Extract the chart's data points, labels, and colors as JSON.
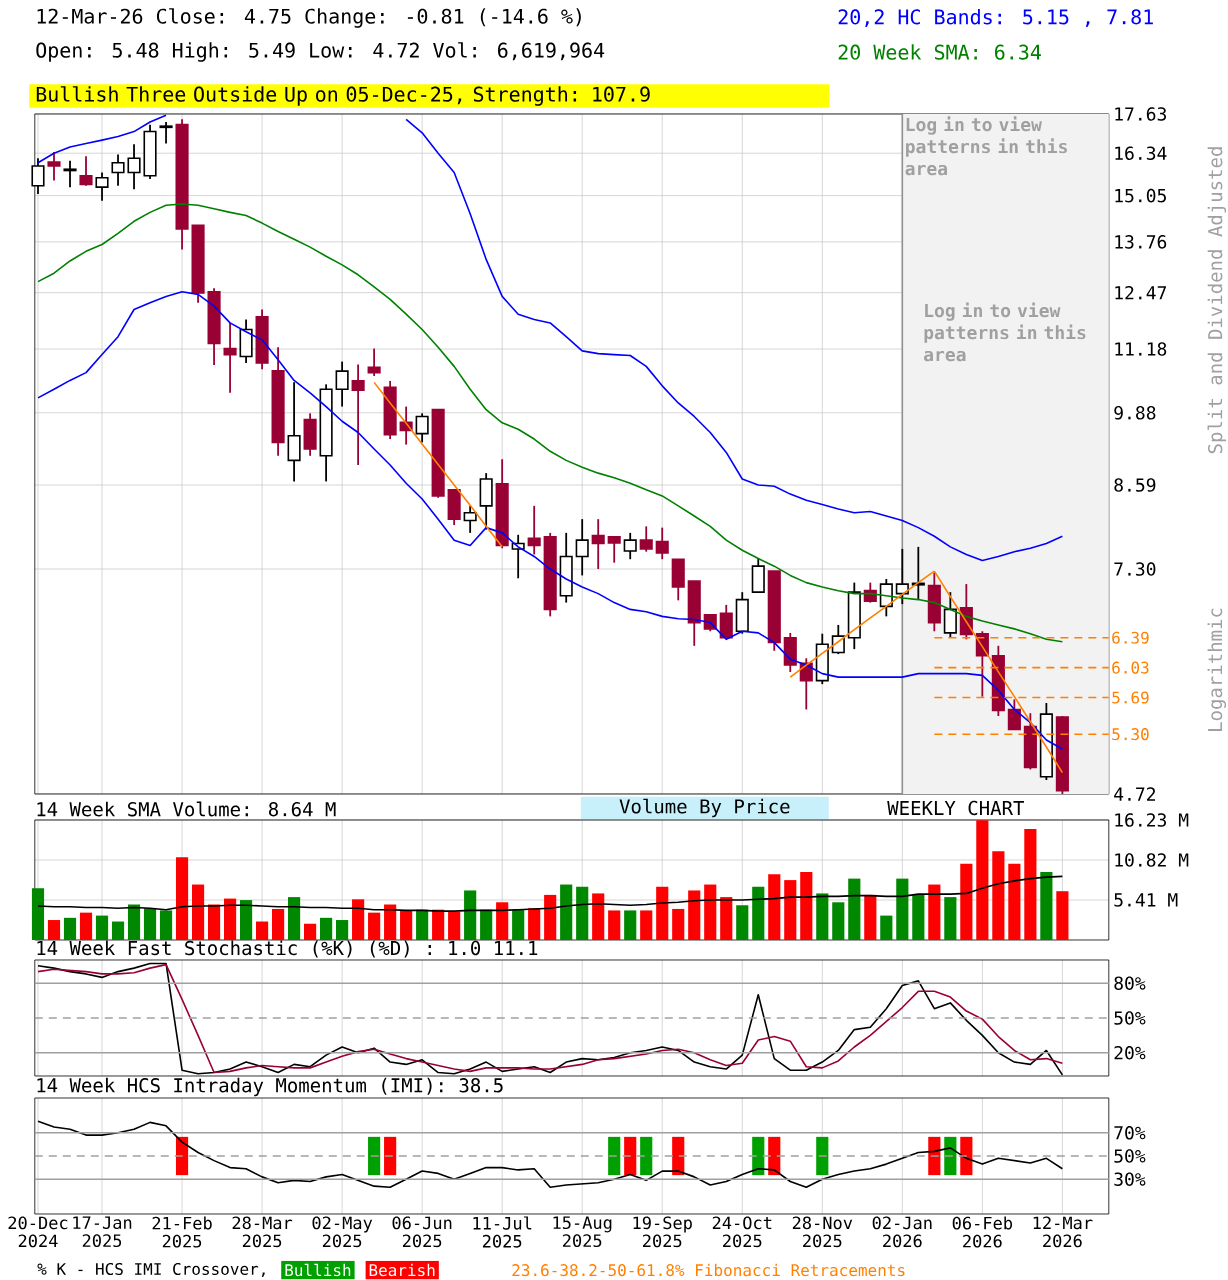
{
  "chart_data": [
    {
      "type": "candlestick",
      "title": "12-Mar-26 Close: 4.75 Change: -0.81 (-14.6 %)",
      "subtitle": "Open: 5.48 High: 5.49 Low: 4.72 Vol: 6,619,964",
      "ylabel": "Split and Dividend Adjusted",
      "annotations": [
        "20,2 HC Bands: 5.15 , 7.81",
        "20 Week SMA: 6.34",
        "Bullish Three Outside Up on 05-Dec-25, Strength: 107.9",
        "Log in to view patterns in this area",
        "Logarithmic",
        "Volume By Price",
        "WEEKLY CHART"
      ],
      "categories": [
        "20-Dec 2024",
        null,
        null,
        null,
        "17-Jan 2025",
        null,
        null,
        null,
        null,
        "21-Feb 2025",
        null,
        null,
        null,
        null,
        "28-Mar 2025",
        null,
        null,
        null,
        null,
        "02-May 2025",
        null,
        null,
        null,
        null,
        "06-Jun 2025",
        null,
        null,
        null,
        null,
        "11-Jul 2025",
        null,
        null,
        null,
        null,
        "15-Aug 2025",
        null,
        null,
        null,
        null,
        "19-Sep 2025",
        null,
        null,
        null,
        null,
        "24-Oct 2025",
        null,
        null,
        null,
        null,
        "28-Nov 2025",
        null,
        null,
        null,
        null,
        "02-Jan 2026",
        null,
        null,
        null,
        null,
        "06-Feb 2026",
        null,
        null,
        null,
        null,
        "12-Mar 2026"
      ],
      "ohlc": [
        [
          15.34,
          16.18,
          15.1,
          15.94
        ],
        [
          16.06,
          16.38,
          15.5,
          15.94
        ],
        [
          15.8,
          16.1,
          15.3,
          15.84
        ],
        [
          15.64,
          16.24,
          15.34,
          15.38
        ],
        [
          15.3,
          15.74,
          14.9,
          15.58
        ],
        [
          15.74,
          16.3,
          15.34,
          16.04
        ],
        [
          15.74,
          16.63,
          15.24,
          16.18
        ],
        [
          15.64,
          17.27,
          15.54,
          17.04
        ],
        [
          17.18,
          17.36,
          16.65,
          17.22
        ],
        [
          17.27,
          17.45,
          13.56,
          14.11
        ],
        [
          14.21,
          14.21,
          12.23,
          12.46
        ],
        [
          12.49,
          12.58,
          10.84,
          11.3
        ],
        [
          11.19,
          11.76,
          10.27,
          11.06
        ],
        [
          11.02,
          11.84,
          10.88,
          11.61
        ],
        [
          11.9,
          12.07,
          10.75,
          10.88
        ],
        [
          10.72,
          11.22,
          9.09,
          9.33
        ],
        [
          9.01,
          10.48,
          8.65,
          9.45
        ],
        [
          9.75,
          9.87,
          9.09,
          9.21
        ],
        [
          9.09,
          10.44,
          8.65,
          10.34
        ],
        [
          10.34,
          10.91,
          10.0,
          10.71
        ],
        [
          10.51,
          10.85,
          8.93,
          10.32
        ],
        [
          10.79,
          11.19,
          10.61,
          10.68
        ],
        [
          10.38,
          10.51,
          9.39,
          9.47
        ],
        [
          9.7,
          10.0,
          9.29,
          9.55
        ],
        [
          9.49,
          9.87,
          9.33,
          9.81
        ],
        [
          9.94,
          9.94,
          8.38,
          8.41
        ],
        [
          8.51,
          8.51,
          7.95,
          8.04
        ],
        [
          8.02,
          8.25,
          7.83,
          8.14
        ],
        [
          8.25,
          8.79,
          7.88,
          8.69
        ],
        [
          8.61,
          9.03,
          7.6,
          7.64
        ],
        [
          7.59,
          7.8,
          7.17,
          7.67
        ],
        [
          7.75,
          8.25,
          7.51,
          7.64
        ],
        [
          7.77,
          7.83,
          6.66,
          6.75
        ],
        [
          6.93,
          7.83,
          6.84,
          7.48
        ],
        [
          7.48,
          8.04,
          7.21,
          7.72
        ],
        [
          7.79,
          8.04,
          7.3,
          7.67
        ],
        [
          7.77,
          7.77,
          7.39,
          7.68
        ],
        [
          7.56,
          7.83,
          7.44,
          7.72
        ],
        [
          7.72,
          7.93,
          7.55,
          7.59
        ],
        [
          7.7,
          7.91,
          7.44,
          7.53
        ],
        [
          7.44,
          7.44,
          6.87,
          7.05
        ],
        [
          7.13,
          7.13,
          6.29,
          6.58
        ],
        [
          6.68,
          6.68,
          6.47,
          6.5
        ],
        [
          6.7,
          6.81,
          6.37,
          6.39
        ],
        [
          6.47,
          6.98,
          6.44,
          6.88
        ],
        [
          6.98,
          7.45,
          6.98,
          7.34
        ],
        [
          7.27,
          7.27,
          6.23,
          6.33
        ],
        [
          6.39,
          6.45,
          5.98,
          6.06
        ],
        [
          6.08,
          6.14,
          5.56,
          5.88
        ],
        [
          5.88,
          6.44,
          5.84,
          6.31
        ],
        [
          6.21,
          6.55,
          6.19,
          6.41
        ],
        [
          6.39,
          7.11,
          6.25,
          6.98
        ],
        [
          7.0,
          7.11,
          6.84,
          6.86
        ],
        [
          6.79,
          7.16,
          6.66,
          7.09
        ],
        [
          6.96,
          7.59,
          6.82,
          7.09
        ],
        [
          7.08,
          7.62,
          6.88,
          7.1
        ],
        [
          7.07,
          7.25,
          6.47,
          6.58
        ],
        [
          6.45,
          6.98,
          6.39,
          6.75
        ],
        [
          6.77,
          7.09,
          6.37,
          6.43
        ],
        [
          6.44,
          6.47,
          5.7,
          6.17
        ],
        [
          6.17,
          6.29,
          5.49,
          5.55
        ],
        [
          5.56,
          5.67,
          5.35,
          5.35
        ],
        [
          5.38,
          5.52,
          4.95,
          4.97
        ],
        [
          4.88,
          5.63,
          4.85,
          5.51
        ],
        [
          5.48,
          5.49,
          4.72,
          4.75
        ]
      ],
      "colors": [
        "#ffffff",
        "#990033",
        "#ffffff",
        "#990033",
        "#ffffff",
        "#ffffff",
        "#ffffff",
        "#ffffff",
        "#ffffff",
        "#990033",
        "#990033",
        "#990033",
        "#990033",
        "#ffffff",
        "#990033",
        "#990033",
        "#ffffff",
        "#990033",
        "#ffffff",
        "#ffffff",
        "#990033",
        "#990033",
        "#990033",
        "#990033",
        "#ffffff",
        "#990033",
        "#990033",
        "#ffffff",
        "#ffffff",
        "#990033",
        "#ffffff",
        "#990033",
        "#990033",
        "#ffffff",
        "#ffffff",
        "#990033",
        "#990033",
        "#ffffff",
        "#990033",
        "#990033",
        "#990033",
        "#990033",
        "#990033",
        "#990033",
        "#ffffff",
        "#ffffff",
        "#990033",
        "#990033",
        "#990033",
        "#ffffff",
        "#ffffff",
        "#ffffff",
        "#990033",
        "#ffffff",
        "#ffffff",
        "#ffffff",
        "#990033",
        "#ffffff",
        "#990033",
        "#990033",
        "#990033",
        "#990033",
        "#990033",
        "#ffffff",
        "#990033"
      ],
      "series": [
        {
          "type": "line",
          "color": "#0000ff",
          "values": [
            16.04,
            16.34,
            16.54,
            16.65,
            16.76,
            16.88,
            17.04,
            17.36,
            17.59,
            null,
            null,
            null,
            null,
            null,
            null,
            null,
            null,
            null,
            null,
            null,
            null,
            null,
            null,
            17.45,
            17.0,
            16.34,
            15.74,
            14.53,
            13.3,
            12.38,
            11.96,
            11.84,
            11.76,
            11.45,
            11.14,
            11.08,
            11.06,
            11.04,
            10.81,
            10.41,
            10.07,
            9.81,
            9.51,
            9.15,
            8.69,
            8.59,
            8.57,
            8.44,
            8.34,
            8.27,
            8.2,
            8.14,
            8.16,
            8.09,
            8.02,
            7.91,
            7.78,
            7.62,
            7.51,
            7.42,
            7.48,
            7.55,
            7.6,
            7.67,
            7.78
          ]
        },
        {
          "type": "line",
          "color": "#0000ff",
          "values": [
            10.17,
            10.34,
            10.52,
            10.68,
            11.06,
            11.45,
            12.07,
            12.23,
            12.38,
            12.49,
            12.43,
            12.15,
            11.76,
            11.56,
            11.38,
            10.95,
            10.52,
            10.27,
            10.0,
            9.72,
            9.51,
            9.21,
            8.93,
            8.62,
            8.36,
            8.04,
            7.72,
            7.64,
            7.91,
            7.83,
            7.62,
            7.48,
            7.3,
            7.16,
            7.05,
            6.96,
            6.84,
            6.75,
            6.72,
            6.66,
            6.63,
            6.62,
            6.58,
            6.37,
            6.47,
            6.45,
            6.33,
            6.13,
            6.06,
            5.96,
            5.92,
            5.92,
            5.92,
            5.92,
            5.92,
            5.96,
            5.96,
            5.96,
            5.96,
            5.94,
            5.77,
            5.56,
            5.42,
            5.24,
            5.15
          ]
        },
        {
          "type": "line",
          "color": "#008000",
          "values": [
            12.74,
            12.95,
            13.26,
            13.51,
            13.69,
            13.99,
            14.32,
            14.57,
            14.77,
            14.81,
            14.77,
            14.67,
            14.57,
            14.48,
            14.27,
            14.04,
            13.83,
            13.62,
            13.38,
            13.16,
            12.91,
            12.61,
            12.31,
            11.96,
            11.61,
            11.22,
            10.81,
            10.34,
            9.94,
            9.69,
            9.57,
            9.39,
            9.17,
            9.01,
            8.89,
            8.79,
            8.71,
            8.62,
            8.51,
            8.41,
            8.25,
            8.09,
            7.93,
            7.72,
            7.57,
            7.45,
            7.34,
            7.21,
            7.11,
            7.05,
            7.0,
            6.96,
            6.96,
            6.93,
            6.9,
            6.88,
            6.84,
            6.75,
            6.66,
            6.6,
            6.55,
            6.5,
            6.44,
            6.37,
            6.34
          ]
        },
        {
          "type": "line",
          "color": "#ff8000",
          "values": [
            null,
            null,
            null,
            null,
            null,
            null,
            null,
            null,
            null,
            null,
            null,
            null,
            null,
            null,
            null,
            null,
            null,
            null,
            null,
            null,
            null,
            10.48,
            10.07,
            9.68,
            9.3,
            8.94,
            8.59,
            8.26,
            7.93,
            7.62,
            null,
            null,
            null,
            null,
            null,
            null,
            null,
            null,
            null,
            null,
            null,
            null,
            null,
            null,
            null,
            null,
            null,
            null,
            null,
            null,
            null,
            null,
            null,
            null,
            null,
            null,
            null,
            null,
            null,
            null,
            null,
            null,
            null,
            null,
            null
          ]
        },
        {
          "type": "line",
          "color": "#ff8000",
          "values": [
            null,
            null,
            null,
            null,
            null,
            null,
            null,
            null,
            null,
            null,
            null,
            null,
            null,
            null,
            null,
            null,
            null,
            null,
            null,
            null,
            null,
            null,
            null,
            null,
            null,
            null,
            null,
            null,
            null,
            null,
            null,
            null,
            null,
            null,
            null,
            null,
            null,
            null,
            null,
            null,
            null,
            null,
            null,
            null,
            null,
            null,
            null,
            5.92,
            6.06,
            6.2,
            6.34,
            6.49,
            6.64,
            6.79,
            6.95,
            7.11,
            7.27,
            null,
            null,
            null,
            null,
            null,
            null,
            null,
            null
          ]
        },
        {
          "type": "line",
          "color": "#ff8000",
          "values": [
            null,
            null,
            null,
            null,
            null,
            null,
            null,
            null,
            null,
            null,
            null,
            null,
            null,
            null,
            null,
            null,
            null,
            null,
            null,
            null,
            null,
            null,
            null,
            null,
            null,
            null,
            null,
            null,
            null,
            null,
            null,
            null,
            null,
            null,
            null,
            null,
            null,
            null,
            null,
            null,
            null,
            null,
            null,
            null,
            null,
            null,
            null,
            null,
            null,
            null,
            null,
            null,
            null,
            null,
            null,
            null,
            7.27,
            6.92,
            6.59,
            6.28,
            5.98,
            5.7,
            5.43,
            5.17,
            4.92
          ]
        }
      ],
      "ref_lines": [
        {
          "axis": "y",
          "value": 6.39,
          "label": "6.39",
          "color": "#ff8000",
          "line_style": "dashed"
        },
        {
          "axis": "y",
          "value": 6.03,
          "label": "6.03",
          "color": "#ff8000",
          "line_style": "dashed"
        },
        {
          "axis": "y",
          "value": 5.69,
          "label": "5.69",
          "color": "#ff8000",
          "line_style": "dashed"
        },
        {
          "axis": "y",
          "value": 5.3,
          "label": "5.30",
          "color": "#ff8000",
          "line_style": "dashed"
        }
      ],
      "bands": [
        {
          "axis": "x",
          "from": "02-Jan 2026",
          "to": "12-Mar 2026",
          "label": "Log in to view patterns in this area",
          "color": "#f2f2f2"
        }
      ],
      "log": "y",
      "ylim": [
        4.72,
        17.63
      ],
      "yticks": [
        17.63,
        16.34,
        15.05,
        13.76,
        12.47,
        11.18,
        9.88,
        8.59,
        {
          "value": 7.3,
          "label": "7.30"
        },
        4.72
      ],
      "grid": true,
      "tick_labels": "y"
    },
    {
      "type": "bar",
      "title": "14 Week SMA Volume: 8.64 M",
      "categories": [
        "20-Dec 2024",
        null,
        null,
        null,
        "17-Jan 2025",
        null,
        null,
        null,
        null,
        "21-Feb 2025",
        null,
        null,
        null,
        null,
        "28-Mar 2025",
        null,
        null,
        null,
        null,
        "02-May 2025",
        null,
        null,
        null,
        null,
        "06-Jun 2025",
        null,
        null,
        null,
        null,
        "11-Jul 2025",
        null,
        null,
        null,
        null,
        "15-Aug 2025",
        null,
        null,
        null,
        null,
        "19-Sep 2025",
        null,
        null,
        null,
        null,
        "24-Oct 2025",
        null,
        null,
        null,
        null,
        "28-Nov 2025",
        null,
        null,
        null,
        null,
        "02-Jan 2026",
        null,
        null,
        null,
        null,
        "06-Feb 2026",
        null,
        null,
        null,
        null,
        "12-Mar 2026"
      ],
      "series": [
        {
          "type": "bar",
          "values": [
            7.0,
            2.7,
            3.0,
            3.7,
            3.3,
            2.5,
            4.8,
            4.3,
            4.0,
            11.2,
            7.5,
            4.8,
            5.6,
            5.4,
            2.5,
            4.2,
            5.8,
            2.2,
            3.0,
            2.7,
            5.5,
            3.7,
            4.8,
            4.0,
            4.1,
            4.1,
            3.8,
            6.7,
            4.1,
            5.1,
            4.1,
            4.3,
            6.1,
            7.5,
            7.2,
            6.3,
            4.0,
            4.0,
            4.0,
            7.2,
            4.2,
            6.7,
            7.5,
            5.8,
            4.7,
            7.2,
            8.9,
            8.1,
            9.2,
            6.3,
            5.1,
            8.3,
            6.1,
            3.3,
            8.3,
            6.1,
            7.5,
            5.8,
            10.3,
            16.2,
            12.0,
            10.3,
            15.0,
            9.2,
            6.6
          ],
          "colors": [
            "#008800",
            "#ff0000",
            "#008800",
            "#ff0000",
            "#008800",
            "#008800",
            "#008800",
            "#008800",
            "#008800",
            "#ff0000",
            "#ff0000",
            "#ff0000",
            "#ff0000",
            "#008800",
            "#ff0000",
            "#ff0000",
            "#008800",
            "#ff0000",
            "#008800",
            "#008800",
            "#ff0000",
            "#ff0000",
            "#ff0000",
            "#ff0000",
            "#008800",
            "#ff0000",
            "#ff0000",
            "#008800",
            "#008800",
            "#ff0000",
            "#008800",
            "#ff0000",
            "#ff0000",
            "#008800",
            "#008800",
            "#ff0000",
            "#ff0000",
            "#008800",
            "#ff0000",
            "#ff0000",
            "#ff0000",
            "#ff0000",
            "#ff0000",
            "#ff0000",
            "#008800",
            "#008800",
            "#ff0000",
            "#ff0000",
            "#ff0000",
            "#008800",
            "#008800",
            "#008800",
            "#ff0000",
            "#008800",
            "#008800",
            "#008800",
            "#ff0000",
            "#008800",
            "#ff0000",
            "#ff0000",
            "#ff0000",
            "#ff0000",
            "#ff0000",
            "#008800",
            "#ff0000"
          ]
        },
        {
          "type": "line",
          "color": "#000000",
          "values": [
            4.6,
            4.5,
            4.5,
            4.4,
            4.4,
            4.3,
            4.4,
            4.3,
            4.1,
            4.5,
            4.6,
            4.6,
            4.7,
            4.7,
            4.6,
            4.5,
            4.5,
            4.4,
            4.4,
            4.3,
            4.3,
            4.1,
            4.1,
            4.0,
            4.0,
            3.9,
            3.9,
            4.0,
            4.0,
            4.0,
            4.1,
            4.2,
            4.3,
            4.6,
            4.8,
            4.9,
            4.8,
            4.7,
            4.8,
            5.0,
            5.1,
            5.3,
            5.4,
            5.4,
            5.4,
            5.5,
            5.6,
            5.8,
            5.8,
            5.9,
            5.9,
            6.0,
            6.0,
            5.9,
            5.9,
            6.2,
            6.2,
            6.2,
            6.3,
            7.0,
            7.6,
            8.0,
            8.3,
            8.5,
            8.6
          ]
        }
      ],
      "ylim": [
        0,
        16.23
      ],
      "yticks": [
        {
          "value": 16.23,
          "label": "16.23 M"
        },
        {
          "value": 10.82,
          "label": "10.82 M"
        },
        {
          "value": 5.41,
          "label": "5.41 M"
        }
      ],
      "grid": true,
      "tick_labels": "y"
    },
    {
      "type": "line",
      "title": "14 Week Fast Stochastic (%K) (%D) : 1.0 11.1",
      "categories": [
        "20-Dec 2024",
        null,
        null,
        null,
        "17-Jan 2025",
        null,
        null,
        null,
        null,
        "21-Feb 2025",
        null,
        null,
        null,
        null,
        "28-Mar 2025",
        null,
        null,
        null,
        null,
        "02-May 2025",
        null,
        null,
        null,
        null,
        "06-Jun 2025",
        null,
        null,
        null,
        null,
        "11-Jul 2025",
        null,
        null,
        null,
        null,
        "15-Aug 2025",
        null,
        null,
        null,
        null,
        "19-Sep 2025",
        null,
        null,
        null,
        null,
        "24-Oct 2025",
        null,
        null,
        null,
        null,
        "28-Nov 2025",
        null,
        null,
        null,
        null,
        "02-Jan 2026",
        null,
        null,
        null,
        null,
        "06-Feb 2026",
        null,
        null,
        null,
        null,
        "12-Mar 2026"
      ],
      "series": [
        {
          "color": "#000000",
          "values": [
            95,
            93,
            90,
            88,
            85,
            90,
            93,
            97,
            97,
            5,
            2,
            3,
            6,
            12,
            8,
            3,
            10,
            8,
            18,
            25,
            20,
            24,
            12,
            10,
            14,
            3,
            2,
            6,
            12,
            4,
            6,
            8,
            3,
            12,
            15,
            14,
            16,
            20,
            22,
            25,
            22,
            12,
            8,
            6,
            18,
            70,
            15,
            5,
            5,
            12,
            22,
            40,
            42,
            58,
            78,
            82,
            58,
            63,
            48,
            35,
            20,
            12,
            10,
            22,
            1
          ]
        },
        {
          "color": "#990033",
          "values": [
            90,
            92,
            91,
            90,
            88,
            88,
            89,
            93,
            96,
            66,
            35,
            3,
            4,
            7,
            9,
            8,
            7,
            7,
            12,
            17,
            21,
            23,
            19,
            15,
            12,
            9,
            6,
            4,
            7,
            7,
            7,
            6,
            6,
            8,
            10,
            14,
            15,
            17,
            19,
            22,
            23,
            20,
            14,
            9,
            11,
            31,
            34,
            30,
            8,
            7,
            13,
            25,
            35,
            47,
            59,
            73,
            73,
            68,
            56,
            49,
            34,
            22,
            14,
            15,
            11
          ]
        }
      ],
      "ref_lines": [
        {
          "axis": "y",
          "value": 80,
          "color": "#a0a0a0"
        },
        {
          "axis": "y",
          "value": 50,
          "color": "#a0a0a0",
          "line_style": "dashed"
        },
        {
          "axis": "y",
          "value": 20,
          "color": "#a0a0a0"
        }
      ],
      "ylim": [
        0,
        100
      ],
      "yticks": [
        {
          "value": 80,
          "label": "80%"
        },
        {
          "value": 50,
          "label": "50%"
        },
        {
          "value": 20,
          "label": "20%"
        }
      ],
      "grid": "x",
      "tick_labels": "y"
    },
    {
      "type": "line",
      "title": "14 Week HCS Intraday Momentum (IMI): 38.5",
      "legend": "bottom",
      "legend_title": "% K - HCS IMI Crossover,",
      "annotations": [
        "23.6-38.2-50-61.8% Fibonacci Retracements"
      ],
      "categories": [
        "20-Dec 2024",
        null,
        null,
        null,
        "17-Jan 2025",
        null,
        null,
        null,
        null,
        "21-Feb 2025",
        null,
        null,
        null,
        null,
        "28-Mar 2025",
        null,
        null,
        null,
        null,
        "02-May 2025",
        null,
        null,
        null,
        null,
        "06-Jun 2025",
        null,
        null,
        null,
        null,
        "11-Jul 2025",
        null,
        null,
        null,
        null,
        "15-Aug 2025",
        null,
        null,
        null,
        null,
        "19-Sep 2025",
        null,
        null,
        null,
        null,
        "24-Oct 2025",
        null,
        null,
        null,
        null,
        "28-Nov 2025",
        null,
        null,
        null,
        null,
        "02-Jan 2026",
        null,
        null,
        null,
        null,
        "06-Feb 2026",
        null,
        null,
        null,
        null,
        "12-Mar 2026"
      ],
      "series": [
        {
          "color": "#000000",
          "values": [
            80,
            75,
            73,
            68,
            68,
            70,
            73,
            79,
            76,
            62,
            53,
            46,
            40,
            39,
            32,
            27,
            29,
            28,
            32,
            34,
            29,
            24,
            23,
            30,
            37,
            35,
            30,
            35,
            40,
            40,
            38,
            39,
            23,
            25,
            26,
            27,
            30,
            34,
            29,
            37,
            37,
            32,
            25,
            28,
            34,
            39,
            38,
            28,
            23,
            30,
            34,
            37,
            39,
            43,
            48,
            53,
            54,
            57,
            48,
            43,
            48,
            46,
            44,
            48,
            39
          ]
        },
        {
          "type": "bar",
          "name": "Bullish",
          "color": "#00a000",
          "base": [
            null,
            null,
            null,
            null,
            null,
            null,
            null,
            null,
            null,
            null,
            null,
            null,
            null,
            null,
            null,
            null,
            null,
            null,
            null,
            null,
            null,
            33.5,
            null,
            null,
            null,
            null,
            null,
            null,
            null,
            null,
            null,
            null,
            null,
            null,
            null,
            null,
            33.5,
            null,
            33.5,
            null,
            null,
            null,
            null,
            null,
            null,
            33.5,
            null,
            null,
            null,
            33.5,
            null,
            null,
            null,
            null,
            null,
            null,
            null,
            33.5,
            null,
            null,
            null,
            null,
            null,
            null,
            null
          ],
          "values": [
            null,
            null,
            null,
            null,
            null,
            null,
            null,
            null,
            null,
            null,
            null,
            null,
            null,
            null,
            null,
            null,
            null,
            null,
            null,
            null,
            null,
            33,
            null,
            null,
            null,
            null,
            null,
            null,
            null,
            null,
            null,
            null,
            null,
            null,
            null,
            null,
            33,
            null,
            33,
            null,
            null,
            null,
            null,
            null,
            null,
            33,
            null,
            null,
            null,
            33,
            null,
            null,
            null,
            null,
            null,
            null,
            null,
            33,
            null,
            null,
            null,
            null,
            null,
            null,
            null
          ]
        },
        {
          "type": "bar",
          "name": "Bearish",
          "color": "#ff0000",
          "base": [
            null,
            null,
            null,
            null,
            null,
            null,
            null,
            null,
            null,
            33.5,
            null,
            null,
            null,
            null,
            null,
            null,
            null,
            null,
            null,
            null,
            null,
            null,
            33.5,
            null,
            null,
            null,
            null,
            null,
            null,
            null,
            null,
            null,
            null,
            null,
            null,
            null,
            null,
            33.5,
            null,
            null,
            33.5,
            null,
            null,
            null,
            null,
            null,
            33.5,
            null,
            null,
            null,
            null,
            null,
            null,
            null,
            null,
            null,
            33.5,
            null,
            33.5,
            null,
            null,
            null,
            null,
            null,
            null
          ],
          "values": [
            null,
            null,
            null,
            null,
            null,
            null,
            null,
            null,
            null,
            33,
            null,
            null,
            null,
            null,
            null,
            null,
            null,
            null,
            null,
            null,
            null,
            null,
            33,
            null,
            null,
            null,
            null,
            null,
            null,
            null,
            null,
            null,
            null,
            null,
            null,
            null,
            null,
            33,
            null,
            null,
            33,
            null,
            null,
            null,
            null,
            null,
            33,
            null,
            null,
            null,
            null,
            null,
            null,
            null,
            null,
            null,
            33,
            null,
            33,
            null,
            null,
            null,
            null,
            null,
            null
          ]
        }
      ],
      "ref_lines": [
        {
          "axis": "y",
          "value": 70,
          "color": "#a0a0a0"
        },
        {
          "axis": "y",
          "value": 50,
          "color": "#a0a0a0",
          "line_style": "dashed"
        },
        {
          "axis": "y",
          "value": 30,
          "color": "#a0a0a0"
        }
      ],
      "ylim": [
        0,
        100
      ],
      "yticks": [
        {
          "value": 70,
          "label": "70%"
        },
        {
          "value": 50,
          "label": "50%"
        },
        {
          "value": 30,
          "label": "30%"
        }
      ],
      "grid": "x"
    }
  ]
}
